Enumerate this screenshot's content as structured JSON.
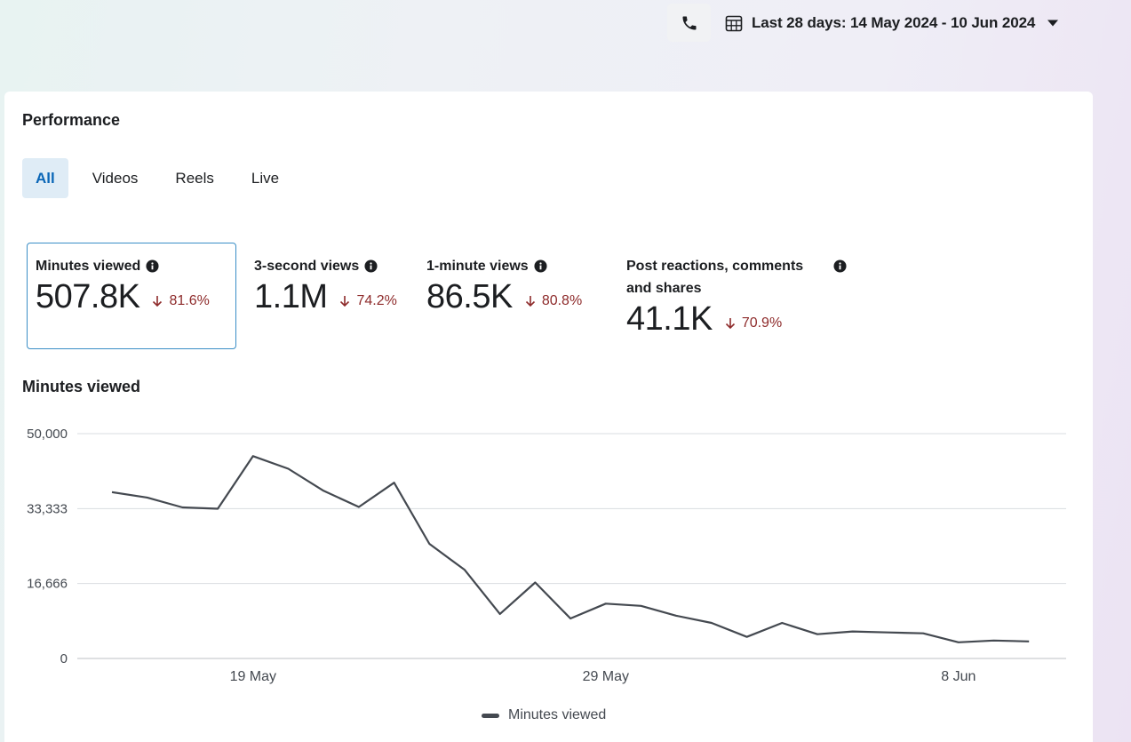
{
  "header": {
    "date_range": "Last 28 days: 14 May 2024 - 10 Jun 2024",
    "phone_icon": "phone-icon",
    "calendar_icon": "calendar-icon",
    "caret_icon": "caret-down-icon"
  },
  "performance": {
    "title": "Performance",
    "tabs": [
      {
        "label": "All",
        "active": true
      },
      {
        "label": "Videos",
        "active": false
      },
      {
        "label": "Reels",
        "active": false
      },
      {
        "label": "Live",
        "active": false
      }
    ],
    "metrics": [
      {
        "label": "Minutes viewed",
        "value": "507.8K",
        "delta": "81.6%",
        "selected": true
      },
      {
        "label": "3-second views",
        "value": "1.1M",
        "delta": "74.2%",
        "selected": false
      },
      {
        "label": "1-minute views",
        "value": "86.5K",
        "delta": "80.8%",
        "selected": false
      },
      {
        "label": "Post reactions, comments and shares",
        "value": "41.1K",
        "delta": "70.9%",
        "selected": false
      }
    ]
  },
  "colors": {
    "accent": "#0a66b7",
    "tab_active_bg": "#dfecf6",
    "negative": "#8e2b2b",
    "line": "#444950"
  },
  "chart_title": "Minutes viewed",
  "chart_data": {
    "type": "line",
    "title": "Minutes viewed",
    "ylim": [
      0,
      50000
    ],
    "yticks": [
      "50,000",
      "33,333",
      "16,666",
      "0"
    ],
    "xticks": [
      {
        "label": "19 May",
        "date": "2024-05-19"
      },
      {
        "label": "29 May",
        "date": "2024-05-29"
      },
      {
        "label": "8 Jun",
        "date": "2024-06-08"
      }
    ],
    "x": [
      "2024-05-15",
      "2024-05-16",
      "2024-05-17",
      "2024-05-18",
      "2024-05-19",
      "2024-05-20",
      "2024-05-21",
      "2024-05-22",
      "2024-05-23",
      "2024-05-24",
      "2024-05-25",
      "2024-05-26",
      "2024-05-27",
      "2024-05-28",
      "2024-05-29",
      "2024-05-30",
      "2024-05-31",
      "2024-06-01",
      "2024-06-02",
      "2024-06-03",
      "2024-06-04",
      "2024-06-05",
      "2024-06-06",
      "2024-06-07",
      "2024-06-08",
      "2024-06-09",
      "2024-06-10"
    ],
    "series": [
      {
        "name": "Minutes viewed",
        "values": [
          37000,
          35800,
          33600,
          33300,
          45000,
          42200,
          37300,
          33700,
          39100,
          25500,
          19700,
          9900,
          16900,
          8900,
          12200,
          11700,
          9500,
          7900,
          4800,
          7900,
          5400,
          6000,
          5800,
          5600,
          3600,
          4000,
          3800
        ]
      }
    ],
    "legend": [
      "Minutes viewed"
    ],
    "legend_position": "bottom",
    "grid": true
  }
}
